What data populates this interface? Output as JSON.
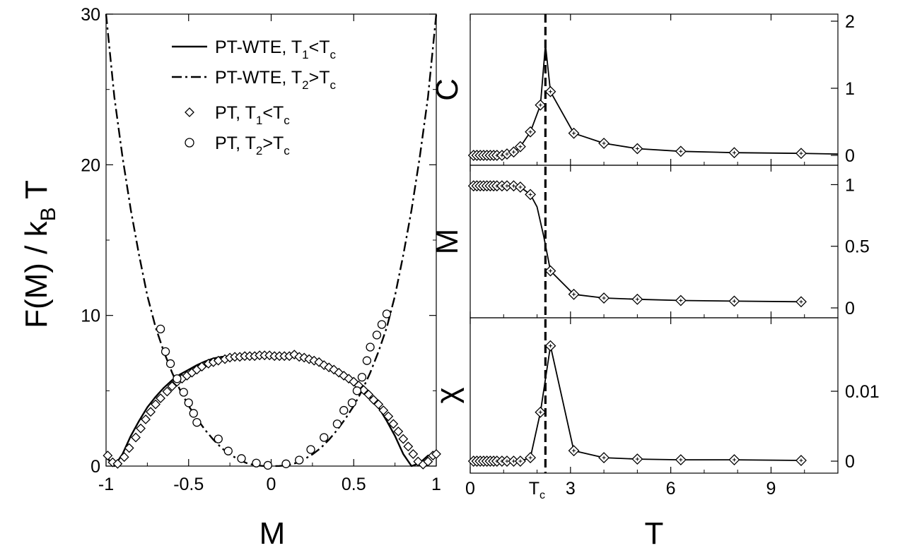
{
  "chart_data": [
    {
      "type": "line",
      "xlabel": "M",
      "ylabel_main": "F(M) / k",
      "ylabel_sub": "B",
      "ylabel_tail": " T",
      "xlim": [
        -1.0,
        1.0
      ],
      "ylim": [
        0,
        30
      ],
      "xticks": [
        -1,
        -0.5,
        0,
        0.5,
        1
      ],
      "xtick_labels": [
        "-1",
        "-0.5",
        "0",
        "0.5",
        "1"
      ],
      "yticks": [
        0,
        10,
        20,
        30
      ],
      "ytick_labels": [
        "0",
        "10",
        "20",
        "30"
      ],
      "legend_position": "top-center",
      "legend": [
        {
          "text": "PT-WTE, T",
          "sub1": "1",
          "mid": "<T",
          "sub2": "c",
          "style": "solid"
        },
        {
          "text": "PT-WTE, T",
          "sub1": "2",
          "mid": ">T",
          "sub2": "c",
          "style": "dashdot"
        },
        {
          "text": "PT, T",
          "sub1": "1",
          "mid": "<T",
          "sub2": "c",
          "style": "diamond"
        },
        {
          "text": "PT, T",
          "sub1": "2",
          "mid": ">T",
          "sub2": "c",
          "style": "circle"
        }
      ],
      "series": [
        {
          "style": "solid",
          "x": [
            -1.0,
            -0.97,
            -0.95,
            -0.9,
            -0.85,
            -0.8,
            -0.75,
            -0.7,
            -0.65,
            -0.6,
            -0.55,
            -0.5,
            -0.45,
            -0.4,
            -0.35,
            -0.3,
            -0.25,
            -0.2,
            -0.15,
            -0.1,
            -0.05,
            0.0,
            0.05,
            0.1,
            0.15,
            0.2,
            0.25,
            0.3,
            0.35,
            0.4,
            0.45,
            0.5,
            0.55,
            0.6,
            0.65,
            0.7,
            0.75,
            0.8,
            0.85,
            0.9,
            0.95,
            0.97,
            1.0
          ],
          "y": [
            0.7,
            0.2,
            0.0,
            0.8,
            2.0,
            3.0,
            3.9,
            4.6,
            5.2,
            5.7,
            6.1,
            6.4,
            6.7,
            6.95,
            7.15,
            7.25,
            7.3,
            7.35,
            7.35,
            7.35,
            7.35,
            7.35,
            7.35,
            7.35,
            7.35,
            7.3,
            7.15,
            6.95,
            6.7,
            6.4,
            6.05,
            5.65,
            5.2,
            4.6,
            3.9,
            3.0,
            2.0,
            0.8,
            0.0,
            0.2,
            0.7,
            0.7,
            0.7
          ]
        },
        {
          "style": "dashdot",
          "x": [
            -1.0,
            -0.95,
            -0.9,
            -0.85,
            -0.8,
            -0.75,
            -0.7,
            -0.65,
            -0.6,
            -0.55,
            -0.5,
            -0.45,
            -0.4,
            -0.35,
            -0.3,
            -0.25,
            -0.2,
            -0.15,
            -0.1,
            -0.05,
            0.0,
            0.05,
            0.1,
            0.15,
            0.2,
            0.25,
            0.3,
            0.35,
            0.4,
            0.45,
            0.5,
            0.55,
            0.6,
            0.65,
            0.7,
            0.75,
            0.8,
            0.85,
            0.9,
            0.95,
            1.0
          ],
          "y": [
            30.0,
            24.5,
            20.5,
            17.0,
            14.0,
            11.3,
            9.2,
            7.6,
            6.2,
            5.0,
            4.0,
            3.15,
            2.4,
            1.75,
            1.2,
            0.78,
            0.45,
            0.2,
            0.06,
            0.01,
            0.0,
            0.01,
            0.06,
            0.2,
            0.45,
            0.78,
            1.2,
            1.75,
            2.4,
            3.15,
            4.0,
            5.0,
            6.2,
            7.6,
            9.2,
            11.3,
            14.0,
            17.0,
            20.5,
            24.5,
            30.0
          ]
        },
        {
          "style": "diamond",
          "x": [
            -0.99,
            -0.96,
            -0.93,
            -0.89,
            -0.86,
            -0.82,
            -0.79,
            -0.76,
            -0.73,
            -0.7,
            -0.67,
            -0.63,
            -0.6,
            -0.57,
            -0.54,
            -0.51,
            -0.48,
            -0.45,
            -0.42,
            -0.38,
            -0.35,
            -0.32,
            -0.28,
            -0.25,
            -0.22,
            -0.19,
            -0.16,
            -0.13,
            -0.1,
            -0.07,
            -0.04,
            -0.01,
            0.02,
            0.05,
            0.08,
            0.11,
            0.14,
            0.17,
            0.2,
            0.23,
            0.26,
            0.29,
            0.32,
            0.35,
            0.38,
            0.41,
            0.44,
            0.47,
            0.5,
            0.53,
            0.56,
            0.59,
            0.62,
            0.65,
            0.68,
            0.71,
            0.74,
            0.77,
            0.8,
            0.83,
            0.86,
            0.89,
            0.92,
            0.95,
            0.98,
            1.0
          ],
          "y": [
            0.7,
            0.25,
            0.15,
            0.6,
            1.2,
            1.9,
            2.5,
            3.1,
            3.6,
            4.1,
            4.5,
            4.95,
            5.3,
            5.6,
            5.8,
            6.0,
            6.2,
            6.4,
            6.6,
            6.8,
            6.9,
            7.0,
            7.1,
            7.2,
            7.25,
            7.25,
            7.3,
            7.3,
            7.3,
            7.35,
            7.35,
            7.35,
            7.3,
            7.3,
            7.3,
            7.3,
            7.4,
            7.25,
            7.2,
            7.1,
            7.0,
            6.9,
            6.7,
            6.55,
            6.4,
            6.2,
            6.0,
            5.8,
            5.6,
            5.35,
            5.05,
            4.75,
            4.4,
            4.1,
            3.7,
            3.3,
            2.8,
            2.3,
            1.8,
            1.3,
            0.8,
            0.3,
            0.1,
            0.3,
            0.7,
            0.8
          ]
        },
        {
          "style": "circle",
          "x": [
            -0.67,
            -0.64,
            -0.61,
            -0.57,
            -0.53,
            -0.5,
            -0.47,
            -0.45,
            -0.32,
            -0.26,
            -0.18,
            -0.09,
            -0.02,
            0.09,
            0.17,
            0.24,
            0.32,
            0.4,
            0.44,
            0.49,
            0.52,
            0.55,
            0.58,
            0.6,
            0.64,
            0.67,
            0.7
          ],
          "y": [
            9.1,
            7.6,
            6.8,
            5.8,
            4.9,
            4.2,
            3.5,
            2.9,
            1.8,
            1.0,
            0.5,
            0.2,
            0.05,
            0.15,
            0.4,
            1.1,
            1.9,
            2.8,
            3.7,
            4.2,
            5.0,
            5.9,
            7.0,
            7.9,
            8.7,
            9.4,
            10.1
          ]
        }
      ]
    },
    {
      "type": "line",
      "ylabel": "C",
      "ylim": [
        0,
        2
      ],
      "yticks": [
        0,
        1,
        2
      ],
      "ytick_labels": [
        "0",
        "1",
        "2"
      ],
      "x": [
        0.1,
        0.2,
        0.3,
        0.4,
        0.5,
        0.6,
        0.7,
        0.8,
        0.95,
        1.1,
        1.3,
        1.5,
        1.8,
        2.1,
        2.25,
        2.4,
        3.1,
        4.0,
        5.0,
        6.3,
        7.9,
        9.9,
        11.0
      ],
      "y": [
        0.0,
        0.0,
        0.0,
        0.0,
        0.0,
        0.0,
        0.0,
        0.0,
        0.0,
        0.02,
        0.05,
        0.13,
        0.35,
        0.75,
        1.65,
        0.95,
        0.33,
        0.18,
        0.1,
        0.06,
        0.04,
        0.03,
        0.02
      ],
      "markers_x": [
        0.1,
        0.2,
        0.3,
        0.4,
        0.5,
        0.6,
        0.7,
        0.8,
        0.95,
        1.1,
        1.3,
        1.5,
        1.8,
        2.1,
        2.4,
        3.1,
        4.0,
        5.0,
        6.3,
        7.9,
        9.9
      ],
      "markers_y": [
        0.0,
        0.0,
        0.0,
        0.0,
        0.0,
        0.0,
        0.0,
        0.0,
        0.0,
        0.02,
        0.05,
        0.13,
        0.35,
        0.75,
        0.95,
        0.33,
        0.18,
        0.1,
        0.06,
        0.04,
        0.03
      ]
    },
    {
      "type": "line",
      "ylabel": "M",
      "ylim": [
        0,
        1.1
      ],
      "yticks": [
        0,
        0.5,
        1
      ],
      "ytick_labels": [
        "0",
        "0.5",
        "1"
      ],
      "x": [
        0.1,
        0.2,
        0.3,
        0.4,
        0.5,
        0.6,
        0.7,
        0.8,
        0.95,
        1.1,
        1.3,
        1.5,
        1.8,
        2.0,
        2.2,
        2.4,
        3.1,
        4.0,
        5.0,
        6.3,
        7.9,
        9.9
      ],
      "y": [
        0.99,
        0.99,
        0.99,
        0.99,
        0.99,
        0.99,
        0.99,
        0.99,
        0.99,
        0.99,
        0.99,
        0.98,
        0.92,
        0.82,
        0.58,
        0.3,
        0.11,
        0.08,
        0.07,
        0.06,
        0.055,
        0.05
      ],
      "markers_x": [
        0.1,
        0.2,
        0.3,
        0.4,
        0.5,
        0.6,
        0.7,
        0.8,
        0.95,
        1.1,
        1.3,
        1.5,
        1.8,
        2.4,
        3.1,
        4.0,
        5.0,
        6.3,
        7.9,
        9.9
      ],
      "markers_y": [
        0.99,
        0.99,
        0.99,
        0.99,
        0.99,
        0.99,
        0.99,
        0.99,
        0.99,
        0.99,
        0.99,
        0.98,
        0.92,
        0.3,
        0.11,
        0.08,
        0.07,
        0.06,
        0.055,
        0.05
      ]
    },
    {
      "type": "line",
      "ylabel": "χ",
      "ylim": [
        -0.0003,
        0.0195
      ],
      "yticks": [
        0,
        0.01
      ],
      "ytick_labels": [
        "0",
        "0.01"
      ],
      "xlabel": "T",
      "xlim": [
        0,
        11
      ],
      "xticks": [
        0,
        3,
        6,
        9
      ],
      "xtick_labels": [
        "0",
        "3",
        "6",
        "9"
      ],
      "tc_value": 2.25,
      "tc_main": "T",
      "tc_sub": "c",
      "x": [
        0.1,
        0.2,
        0.3,
        0.4,
        0.5,
        0.6,
        0.7,
        0.8,
        0.95,
        1.1,
        1.3,
        1.5,
        1.8,
        2.1,
        2.4,
        3.1,
        4.0,
        5.0,
        6.3,
        7.9,
        9.9
      ],
      "y": [
        0.0,
        0.0,
        0.0,
        0.0,
        0.0,
        0.0,
        0.0,
        0.0,
        0.0,
        0.0,
        0.0,
        0.0,
        0.0005,
        0.007,
        0.0165,
        0.0015,
        0.0005,
        0.0003,
        0.0002,
        0.0002,
        0.0001
      ]
    }
  ]
}
